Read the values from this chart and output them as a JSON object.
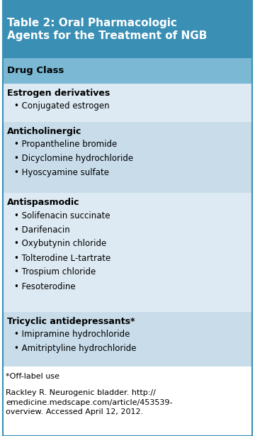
{
  "title": "Table 2: Oral Pharmacologic\nAgents for the Treatment of NGB",
  "title_bg": "#3a8fb5",
  "title_color": "#ffffff",
  "header": "Drug Class",
  "header_bg": "#7ab8d4",
  "header_color": "#000000",
  "sections": [
    {
      "category": "Estrogen derivatives",
      "items": [
        "Conjugated estrogen"
      ],
      "bg": "#ddeaf3"
    },
    {
      "category": "Anticholinergic",
      "items": [
        "Propantheline bromide",
        "Dicyclomine hydrochloride",
        "Hyoscyamine sulfate"
      ],
      "bg": "#c8dcea"
    },
    {
      "category": "Antispasmodic",
      "items": [
        "Solifenacin succinate",
        "Darifenacin",
        "Oxybutynin chloride",
        "Tolterodine L-tartrate",
        "Trospium chloride",
        "Fesoterodine"
      ],
      "bg": "#ddeaf3"
    },
    {
      "category": "Tricyclic antidepressants*",
      "items": [
        "Imipramine hydrochloride",
        "Amitriptyline hydrochloride"
      ],
      "bg": "#c8dcea"
    }
  ],
  "footnote1": "*Off-label use",
  "footnote2": "Rackley R. Neurogenic bladder. http://\nemedicine.medscape.com/article/453539-\noverview. Accessed April 12, 2012.",
  "footnote_bg": "#ffffff",
  "border_color": "#3a8fb5",
  "title_fontsize": 11.0,
  "header_fontsize": 9.5,
  "category_fontsize": 9.0,
  "item_fontsize": 8.5,
  "footnote_fontsize": 8.0
}
